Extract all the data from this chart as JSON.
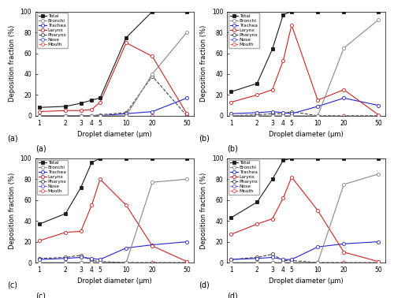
{
  "x": [
    1,
    2,
    3,
    4,
    5,
    10,
    20,
    50
  ],
  "panels": [
    {
      "label": "(a)",
      "Total": [
        8,
        9,
        12,
        15,
        17,
        75,
        100,
        100
      ],
      "Bronchi": [
        0,
        0,
        0,
        0,
        0,
        0,
        40,
        80
      ],
      "Trachea": [
        0,
        0,
        0,
        0,
        0,
        2,
        4,
        17
      ],
      "Larynx": [
        4,
        5,
        5,
        6,
        13,
        70,
        57,
        2
      ],
      "Pharynx": [
        0,
        0,
        0,
        0,
        1,
        3,
        38,
        0
      ],
      "Nose": [
        0,
        0,
        0,
        0,
        0,
        0,
        0,
        0
      ],
      "Mouth": [
        0,
        0,
        0,
        0,
        0,
        0,
        0,
        0
      ]
    },
    {
      "label": "(b)",
      "Total": [
        23,
        31,
        64,
        97,
        100,
        100,
        100,
        100
      ],
      "Bronchi": [
        0,
        0,
        0,
        0,
        0,
        0,
        65,
        92
      ],
      "Trachea": [
        2,
        3,
        4,
        3,
        2,
        9,
        17,
        10
      ],
      "Larynx": [
        13,
        20,
        25,
        53,
        87,
        15,
        25,
        1
      ],
      "Pharynx": [
        0,
        1,
        2,
        2,
        4,
        0,
        0,
        0
      ],
      "Nose": [
        0,
        0,
        0,
        0,
        0,
        0,
        0,
        0
      ],
      "Mouth": [
        0,
        0,
        0,
        0,
        0,
        0,
        0,
        0
      ]
    },
    {
      "label": "(c)",
      "Total": [
        37,
        47,
        72,
        96,
        100,
        100,
        100,
        100
      ],
      "Bronchi": [
        0,
        0,
        0,
        0,
        0,
        0,
        77,
        80
      ],
      "Trachea": [
        3,
        4,
        5,
        4,
        3,
        14,
        17,
        20
      ],
      "Larynx": [
        21,
        29,
        30,
        55,
        80,
        55,
        16,
        1
      ],
      "Pharynx": [
        4,
        5,
        7,
        2,
        1,
        0,
        0,
        0
      ],
      "Nose": [
        0,
        0,
        0,
        0,
        0,
        0,
        0,
        0
      ],
      "Mouth": [
        0,
        0,
        0,
        0,
        0,
        0,
        0,
        0
      ]
    },
    {
      "label": "(d)",
      "Total": [
        43,
        58,
        80,
        98,
        100,
        100,
        100,
        100
      ],
      "Bronchi": [
        0,
        0,
        0,
        0,
        0,
        0,
        75,
        85
      ],
      "Trachea": [
        3,
        4,
        5,
        3,
        3,
        15,
        18,
        20
      ],
      "Larynx": [
        27,
        37,
        42,
        62,
        82,
        50,
        10,
        1
      ],
      "Pharynx": [
        3,
        5,
        8,
        2,
        2,
        0,
        0,
        0
      ],
      "Nose": [
        0,
        0,
        0,
        0,
        0,
        0,
        0,
        0
      ],
      "Mouth": [
        0,
        0,
        0,
        0,
        0,
        0,
        0,
        0
      ]
    }
  ],
  "series_styles": {
    "Total": {
      "color": "#1a1a1a",
      "marker": "s",
      "linestyle": "-",
      "filled": true,
      "zorder": 5
    },
    "Bronchi": {
      "color": "#888888",
      "marker": "o",
      "linestyle": "-",
      "filled": false,
      "zorder": 4
    },
    "Trachea": {
      "color": "#2222cc",
      "marker": "o",
      "linestyle": "-",
      "filled": false,
      "zorder": 3
    },
    "Larynx": {
      "color": "#cc2222",
      "marker": "o",
      "linestyle": "-",
      "filled": false,
      "zorder": 3
    },
    "Pharynx": {
      "color": "#444444",
      "marker": "o",
      "linestyle": "--",
      "filled": false,
      "zorder": 2
    },
    "Nose": {
      "color": "#5555ee",
      "marker": "o",
      "linestyle": "--",
      "filled": false,
      "zorder": 2
    },
    "Mouth": {
      "color": "#ee5555",
      "marker": "o",
      "linestyle": "--",
      "filled": false,
      "zorder": 2
    }
  },
  "xlabel": "Droplet diameter (μm)",
  "ylabel": "Deposition fraction (%)",
  "xlim": [
    0.9,
    60
  ],
  "ylim": [
    0,
    100
  ],
  "yticks": [
    0,
    20,
    40,
    60,
    80,
    100
  ],
  "xticks": [
    1,
    2,
    3,
    4,
    5,
    10,
    20,
    50
  ]
}
